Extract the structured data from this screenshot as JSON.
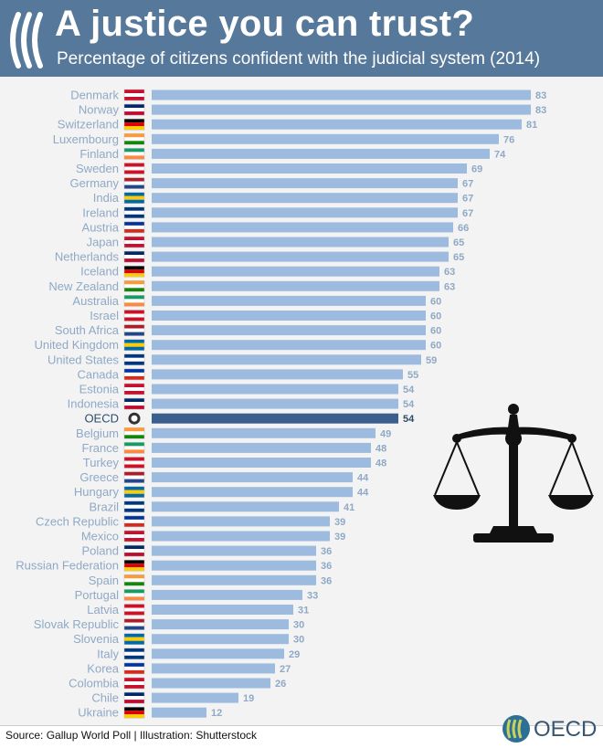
{
  "header": {
    "title": "A justice you can trust?",
    "subtitle": "Percentage of citizens confident with the judicial system (2014)"
  },
  "footer": {
    "source": "Source: Gallup World Poll | Illustration: Shutterstock",
    "logo_text": "OECD"
  },
  "colors": {
    "header_bg": "#56789a",
    "bar": "#9dbbde",
    "bar_highlight": "#3a5f8c",
    "label": "#8fa9c6",
    "value_label": "#8fa9c6",
    "value_label_highlight": "#2e4b6e",
    "plot_bg": "#f3f3f3"
  },
  "icons": {
    "flags": "country-flag-icon",
    "scales": "scales-of-justice-icon",
    "logo": "oecd-logo-icon"
  },
  "chart_data": {
    "type": "bar",
    "orientation": "horizontal",
    "title": "A justice you can trust?",
    "subtitle": "Percentage of citizens confident with the judicial system (2014)",
    "xlabel": "",
    "ylabel": "",
    "xlim": [
      0,
      100
    ],
    "grid": false,
    "legend": "none",
    "highlight": "OECD",
    "categories": [
      "Denmark",
      "Norway",
      "Switzerland",
      "Luxembourg",
      "Finland",
      "Sweden",
      "Germany",
      "India",
      "Ireland",
      "Austria",
      "Japan",
      "Netherlands",
      "Iceland",
      "New Zealand",
      "Australia",
      "Israel",
      "South Africa",
      "United Kingdom",
      "United States",
      "Canada",
      "Estonia",
      "Indonesia",
      "OECD",
      "Belgium",
      "France",
      "Turkey",
      "Greece",
      "Hungary",
      "Brazil",
      "Czech Republic",
      "Mexico",
      "Poland",
      "Russian Federation",
      "Spain",
      "Portugal",
      "Latvia",
      "Slovak Republic",
      "Slovenia",
      "Italy",
      "Korea",
      "Colombia",
      "Chile",
      "Ukraine"
    ],
    "values": [
      83,
      83,
      81,
      76,
      74,
      69,
      67,
      67,
      67,
      66,
      65,
      65,
      63,
      63,
      60,
      60,
      60,
      60,
      59,
      55,
      54,
      54,
      54,
      49,
      48,
      48,
      44,
      44,
      41,
      39,
      39,
      36,
      36,
      36,
      33,
      31,
      30,
      30,
      29,
      27,
      26,
      19,
      12
    ]
  }
}
